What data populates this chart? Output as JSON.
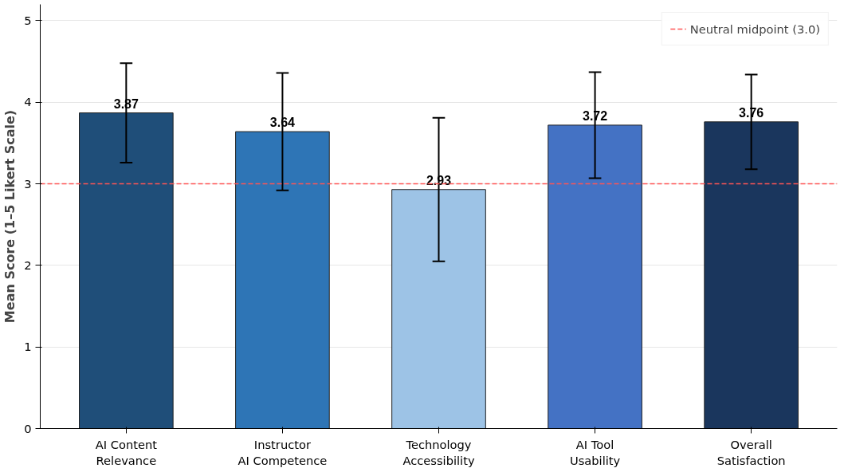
{
  "chart_data": {
    "type": "bar",
    "ylabel": "Mean Score (1–5 Likert Scale)",
    "categories": [
      "AI Content\nRelevance",
      "Instructor\nAI Competence",
      "Technology\nAccessibility",
      "AI Tool\nUsability",
      "Overall\nSatisfaction"
    ],
    "values": [
      3.87,
      3.64,
      2.93,
      3.72,
      3.76
    ],
    "errors": [
      0.61,
      0.72,
      0.88,
      0.65,
      0.58
    ],
    "colors": [
      "#1f4e79",
      "#2e75b6",
      "#9dc3e6",
      "#4472c4",
      "#1a365d"
    ],
    "data_labels": true,
    "ylim": [
      0,
      5.2
    ],
    "yticks": [
      0,
      1,
      2,
      3,
      4,
      5
    ],
    "grid": "y",
    "legend": "top right",
    "ref_lines": [
      {
        "axis": "y",
        "value": 3.0,
        "label": "Neutral midpoint (3.0)",
        "color": "#ff5555",
        "line_style": "dashed"
      }
    ]
  }
}
